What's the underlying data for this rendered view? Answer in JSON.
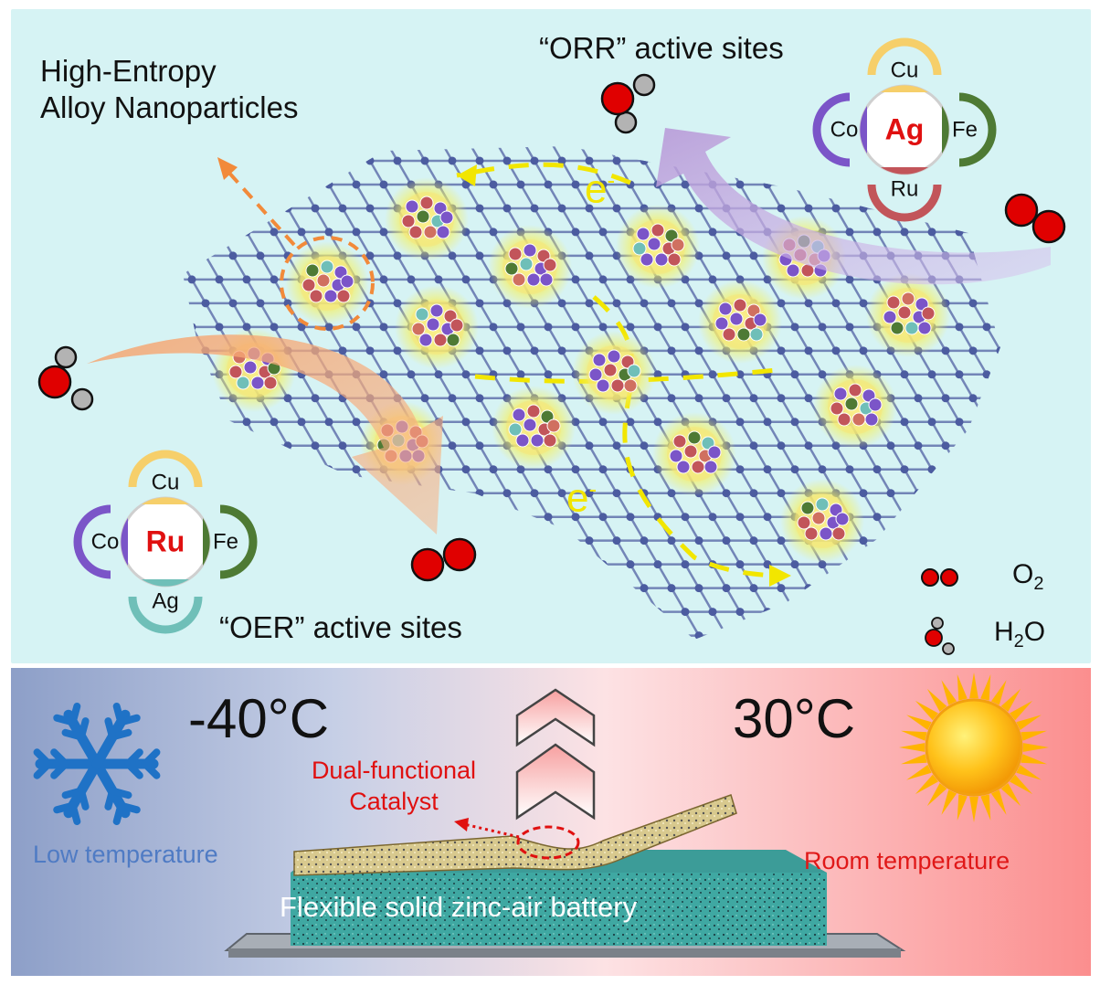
{
  "top": {
    "hea_label_line1": "High-Entropy",
    "hea_label_line2": "Alloy Nanoparticles",
    "orr_label": "“ORR” active sites",
    "oer_label": "“OER” active sites",
    "electron_label": "e",
    "electron_sup": "-",
    "orr_site": {
      "center": "Ag",
      "top": "Cu",
      "left": "Co",
      "right": "Fe",
      "bottom": "Ru"
    },
    "oer_site": {
      "center": "Ru",
      "top": "Cu",
      "left": "Co",
      "right": "Fe",
      "bottom": "Ag"
    },
    "legend": {
      "o2_prefix": "O",
      "o2_sub": "2",
      "h2o_prefix": "H",
      "h2o_sub": "2",
      "h2o_suffix": "O"
    }
  },
  "bottom": {
    "low_temp_value": "-40°C",
    "low_temp_label": "Low temperature",
    "room_temp_value": "30°C",
    "room_temp_label": "Room temperature",
    "catalyst_line1": "Dual-functional",
    "catalyst_line2": "Catalyst",
    "battery_label": "Flexible solid zinc-air battery"
  },
  "colors": {
    "cu": "#f6cf6a",
    "co": "#7b55c8",
    "fe": "#4e7a34",
    "ru": "#c2555a",
    "ag": "#6fbfb8",
    "accent_red": "#e01010",
    "electron_yellow": "#f2e600",
    "lattice": "#5a6aa8"
  }
}
